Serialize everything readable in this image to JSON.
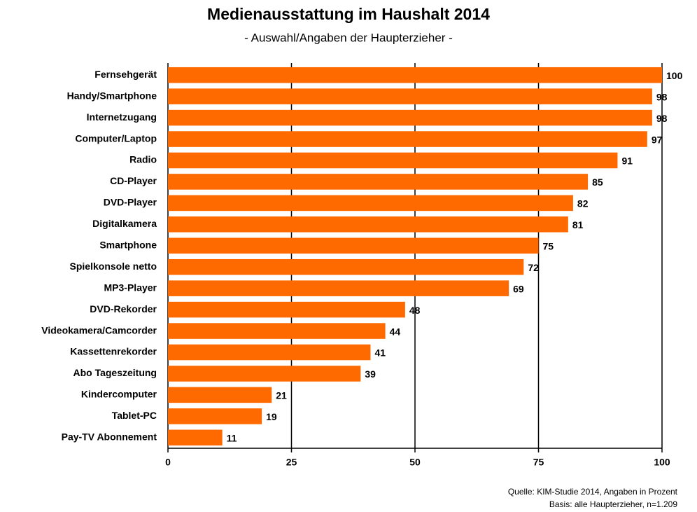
{
  "chart_data": {
    "type": "bar",
    "orientation": "horizontal",
    "title": "Medienausstattung im Haushalt 2014",
    "subtitle": "- Auswahl/Angaben der Haupterzieher -",
    "categories": [
      "Fernsehgerät",
      "Handy/Smartphone",
      "Internetzugang",
      "Computer/Laptop",
      "Radio",
      "CD-Player",
      "DVD-Player",
      "Digitalkamera",
      "Smartphone",
      "Spielkonsole netto",
      "MP3-Player",
      "DVD-Rekorder",
      "Videokamera/Camcorder",
      "Kassettenrekorder",
      "Abo Tageszeitung",
      "Kindercomputer",
      "Tablet-PC",
      "Pay-TV Abonnement"
    ],
    "values": [
      100,
      98,
      98,
      97,
      91,
      85,
      82,
      81,
      75,
      72,
      69,
      48,
      44,
      41,
      39,
      21,
      19,
      11
    ],
    "color": "#ff6a00",
    "xlim": [
      0,
      100
    ],
    "xticks": [
      0,
      25,
      50,
      75,
      100
    ],
    "grid": true,
    "source": [
      "Quelle: KIM-Studie 2014, Angaben in Prozent",
      "Basis: alle Haupterzieher, n=1.209"
    ]
  }
}
